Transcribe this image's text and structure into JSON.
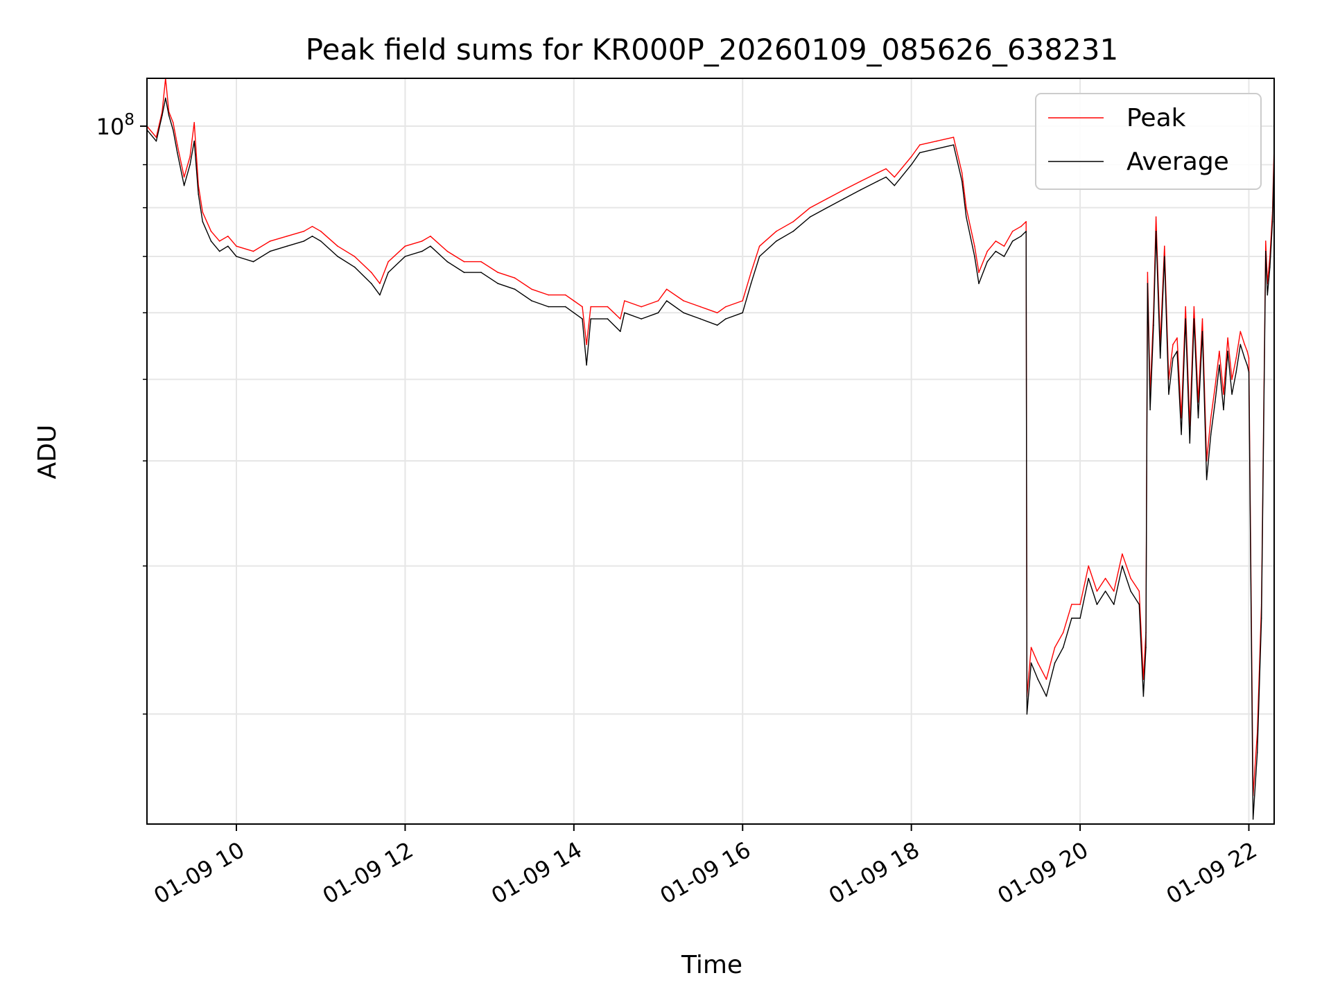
{
  "chart_data": {
    "type": "line",
    "title": "Peak field sums for KR000P_20260109_085626_638231",
    "xlabel": "Time",
    "ylabel": "ADU",
    "yscale": "log",
    "ylim": [
      14800000,
      114000000
    ],
    "xlim_hours": [
      8.94,
      22.3
    ],
    "grid": true,
    "legend_position": "upper right",
    "y_major_ticks": [
      {
        "value": 100000000,
        "base": "10",
        "exponent": "8"
      }
    ],
    "y_minor_ticks": [
      20000000,
      30000000,
      40000000,
      50000000,
      60000000,
      70000000,
      80000000,
      90000000
    ],
    "x_ticks": [
      {
        "hour": 10,
        "label": "01-09 10"
      },
      {
        "hour": 12,
        "label": "01-09 12"
      },
      {
        "hour": 14,
        "label": "01-09 14"
      },
      {
        "hour": 16,
        "label": "01-09 16"
      },
      {
        "hour": 18,
        "label": "01-09 18"
      },
      {
        "hour": 20,
        "label": "01-09 20"
      },
      {
        "hour": 22,
        "label": "01-09 22"
      }
    ],
    "series": [
      {
        "name": "Peak",
        "color": "#ff0000",
        "x": [
          8.94,
          9.05,
          9.12,
          9.16,
          9.2,
          9.25,
          9.3,
          9.38,
          9.45,
          9.5,
          9.55,
          9.6,
          9.7,
          9.8,
          9.9,
          10.0,
          10.2,
          10.4,
          10.6,
          10.8,
          10.9,
          11.0,
          11.2,
          11.4,
          11.6,
          11.7,
          11.8,
          12.0,
          12.2,
          12.3,
          12.5,
          12.7,
          12.9,
          13.1,
          13.3,
          13.5,
          13.7,
          13.9,
          14.0,
          14.1,
          14.15,
          14.2,
          14.4,
          14.55,
          14.6,
          14.8,
          15.0,
          15.1,
          15.3,
          15.5,
          15.7,
          15.8,
          16.0,
          16.1,
          16.2,
          16.4,
          16.6,
          16.8,
          17.0,
          17.2,
          17.4,
          17.6,
          17.7,
          17.8,
          18.0,
          18.1,
          18.3,
          18.5,
          18.6,
          18.65,
          18.75,
          18.8,
          18.9,
          19.0,
          19.1,
          19.2,
          19.3,
          19.36,
          19.37,
          19.42,
          19.5,
          19.6,
          19.7,
          19.8,
          19.9,
          20.0,
          20.1,
          20.2,
          20.3,
          20.4,
          20.5,
          20.6,
          20.7,
          20.75,
          20.78,
          20.8,
          20.83,
          20.87,
          20.9,
          20.95,
          21.0,
          21.05,
          21.1,
          21.15,
          21.2,
          21.25,
          21.3,
          21.35,
          21.4,
          21.45,
          21.5,
          21.55,
          21.6,
          21.65,
          21.7,
          21.75,
          21.8,
          21.85,
          21.9,
          21.95,
          21.98,
          22.0,
          22.05,
          22.1,
          22.15,
          22.2,
          22.22,
          22.25,
          22.28,
          22.3
        ],
        "y": [
          100000000,
          97000000,
          104000000,
          114000000,
          104000000,
          101000000,
          95000000,
          87000000,
          92000000,
          101000000,
          85000000,
          79000000,
          75000000,
          73000000,
          74000000,
          72000000,
          71000000,
          73000000,
          74000000,
          75000000,
          76000000,
          75000000,
          72000000,
          70000000,
          67000000,
          65000000,
          69000000,
          72000000,
          73000000,
          74000000,
          71000000,
          69000000,
          69000000,
          67000000,
          66000000,
          64000000,
          63000000,
          63000000,
          62000000,
          61000000,
          55000000,
          61000000,
          61000000,
          59000000,
          62000000,
          61000000,
          62000000,
          64000000,
          62000000,
          61000000,
          60000000,
          61000000,
          62000000,
          67000000,
          72000000,
          75000000,
          77000000,
          80000000,
          82000000,
          84000000,
          86000000,
          88000000,
          89000000,
          87000000,
          92000000,
          95000000,
          96000000,
          97000000,
          88000000,
          80000000,
          72000000,
          67000000,
          71000000,
          73000000,
          72000000,
          75000000,
          76000000,
          77000000,
          21000000,
          24000000,
          23000000,
          22000000,
          24000000,
          25000000,
          27000000,
          27000000,
          30000000,
          28000000,
          29000000,
          28000000,
          31000000,
          29000000,
          28000000,
          22000000,
          25000000,
          67000000,
          48000000,
          60000000,
          78000000,
          55000000,
          72000000,
          50000000,
          55000000,
          56000000,
          45000000,
          61000000,
          44000000,
          61000000,
          47000000,
          59000000,
          40000000,
          45000000,
          49000000,
          54000000,
          48000000,
          56000000,
          50000000,
          53000000,
          57000000,
          55000000,
          54000000,
          53000000,
          16000000,
          19000000,
          27000000,
          73000000,
          65000000,
          70000000,
          79000000,
          95000000
        ]
      },
      {
        "name": "Average",
        "color": "#000000",
        "x": [
          8.94,
          9.05,
          9.12,
          9.16,
          9.2,
          9.25,
          9.3,
          9.38,
          9.45,
          9.5,
          9.55,
          9.6,
          9.7,
          9.8,
          9.9,
          10.0,
          10.2,
          10.4,
          10.6,
          10.8,
          10.9,
          11.0,
          11.2,
          11.4,
          11.6,
          11.7,
          11.8,
          12.0,
          12.2,
          12.3,
          12.5,
          12.7,
          12.9,
          13.1,
          13.3,
          13.5,
          13.7,
          13.9,
          14.0,
          14.1,
          14.15,
          14.2,
          14.4,
          14.55,
          14.6,
          14.8,
          15.0,
          15.1,
          15.3,
          15.5,
          15.7,
          15.8,
          16.0,
          16.1,
          16.2,
          16.4,
          16.6,
          16.8,
          17.0,
          17.2,
          17.4,
          17.6,
          17.7,
          17.8,
          18.0,
          18.1,
          18.3,
          18.5,
          18.6,
          18.65,
          18.75,
          18.8,
          18.9,
          19.0,
          19.1,
          19.2,
          19.3,
          19.36,
          19.37,
          19.42,
          19.5,
          19.6,
          19.7,
          19.8,
          19.9,
          20.0,
          20.1,
          20.2,
          20.3,
          20.4,
          20.5,
          20.6,
          20.7,
          20.75,
          20.78,
          20.8,
          20.83,
          20.87,
          20.9,
          20.95,
          21.0,
          21.05,
          21.1,
          21.15,
          21.2,
          21.25,
          21.3,
          21.35,
          21.4,
          21.45,
          21.5,
          21.55,
          21.6,
          21.65,
          21.7,
          21.75,
          21.8,
          21.85,
          21.9,
          21.95,
          21.98,
          22.0,
          22.05,
          22.1,
          22.15,
          22.2,
          22.22,
          22.25,
          22.28,
          22.3
        ],
        "y": [
          99000000,
          96000000,
          103000000,
          108000000,
          103000000,
          99000000,
          93000000,
          85000000,
          90000000,
          96000000,
          83000000,
          77000000,
          73000000,
          71000000,
          72000000,
          70000000,
          69000000,
          71000000,
          72000000,
          73000000,
          74000000,
          73000000,
          70000000,
          68000000,
          65000000,
          63000000,
          67000000,
          70000000,
          71000000,
          72000000,
          69000000,
          67000000,
          67000000,
          65000000,
          64000000,
          62000000,
          61000000,
          61000000,
          60000000,
          59000000,
          52000000,
          59000000,
          59000000,
          57000000,
          60000000,
          59000000,
          60000000,
          62000000,
          60000000,
          59000000,
          58000000,
          59000000,
          60000000,
          65000000,
          70000000,
          73000000,
          75000000,
          78000000,
          80000000,
          82000000,
          84000000,
          86000000,
          87000000,
          85000000,
          90000000,
          93000000,
          94000000,
          95000000,
          86000000,
          78000000,
          70000000,
          65000000,
          69000000,
          71000000,
          70000000,
          73000000,
          74000000,
          75000000,
          20000000,
          23000000,
          22000000,
          21000000,
          23000000,
          24000000,
          26000000,
          26000000,
          29000000,
          27000000,
          28000000,
          27000000,
          30000000,
          28000000,
          27000000,
          21000000,
          24000000,
          65000000,
          46000000,
          58000000,
          75000000,
          53000000,
          70000000,
          48000000,
          53000000,
          54000000,
          43000000,
          59000000,
          42000000,
          59000000,
          45000000,
          57000000,
          38000000,
          43000000,
          47000000,
          52000000,
          46000000,
          54000000,
          48000000,
          51000000,
          55000000,
          53000000,
          52000000,
          51000000,
          15000000,
          18000000,
          26000000,
          71000000,
          63000000,
          68000000,
          77000000,
          92000000
        ]
      }
    ]
  }
}
